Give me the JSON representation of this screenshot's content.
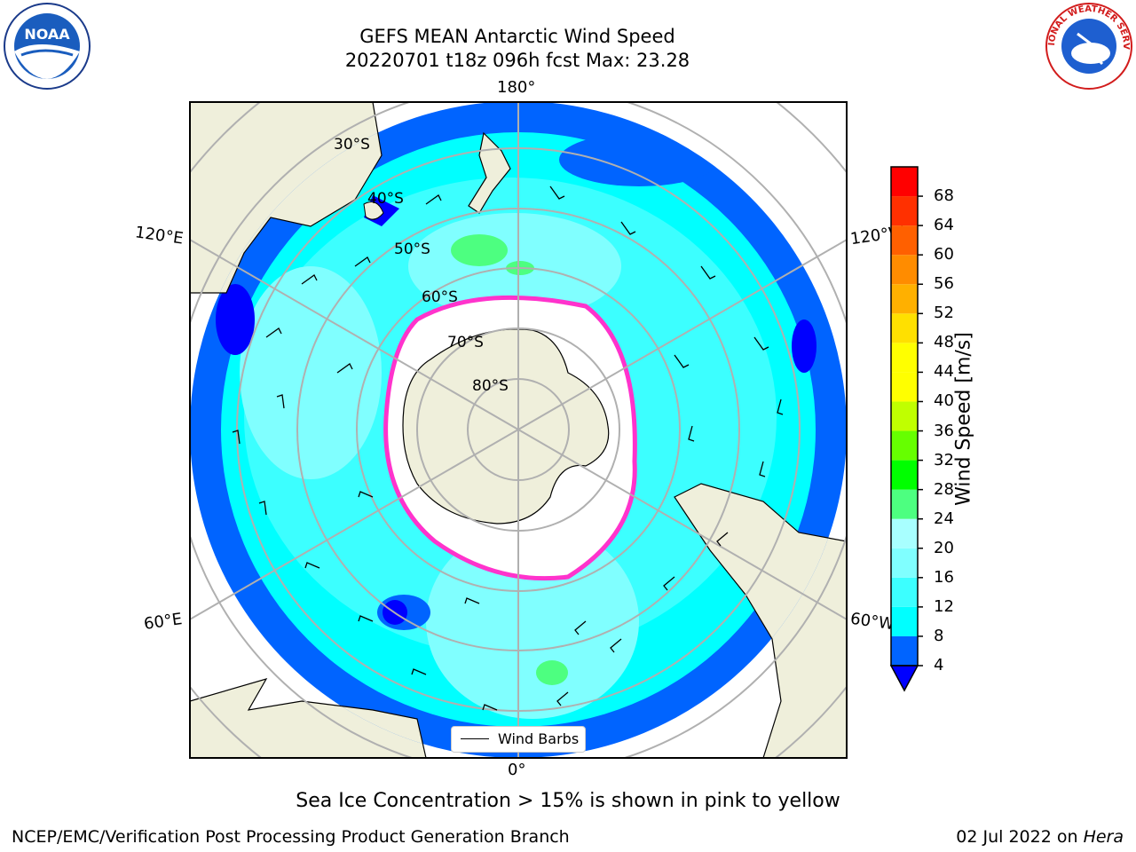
{
  "header": {
    "title_line1": "GEFS MEAN Antarctic Wind Speed",
    "title_line2": "20220701 t18z 096h fcst   Max: 23.28"
  },
  "logos": {
    "left": {
      "icon": "noaa-logo",
      "text": "NOAA"
    },
    "right": {
      "icon": "national-weather-service-logo",
      "text": "NATIONAL WEATHER SERVICE"
    }
  },
  "map": {
    "longitude_labels": {
      "top": "180°",
      "bottom": "0°",
      "upper_left": "120°E",
      "upper_right": "120°W",
      "lower_left": "60°E",
      "lower_right": "60°W"
    },
    "latitude_labels": [
      "30°S",
      "40°S",
      "50°S",
      "60°S",
      "70°S",
      "80°S"
    ],
    "legend": {
      "entry": "Wind Barbs"
    }
  },
  "colorbar": {
    "label": "Wind Speed [m/s]",
    "ticks": [
      "4",
      "8",
      "12",
      "16",
      "20",
      "24",
      "28",
      "32",
      "36",
      "40",
      "44",
      "48",
      "52",
      "56",
      "60",
      "64",
      "68"
    ],
    "colors": [
      "#0064ff",
      "#00ffff",
      "#3cffff",
      "#80ffff",
      "#a8ffff",
      "#4dff80",
      "#00ff00",
      "#66ff00",
      "#c0ff00",
      "#ffff00",
      "#ffff00",
      "#ffe000",
      "#ffb000",
      "#ff8c00",
      "#ff6000",
      "#ff3000",
      "#ff0000"
    ],
    "extend_color": "#0000ff"
  },
  "notes": {
    "sea_ice": "Sea Ice Concentration > 15% is shown in pink to yellow"
  },
  "footer": {
    "left": "NCEP/EMC/Verification Post Processing Product Generation Branch",
    "right_date": "02 Jul 2022 on ",
    "right_host": "Hera"
  }
}
